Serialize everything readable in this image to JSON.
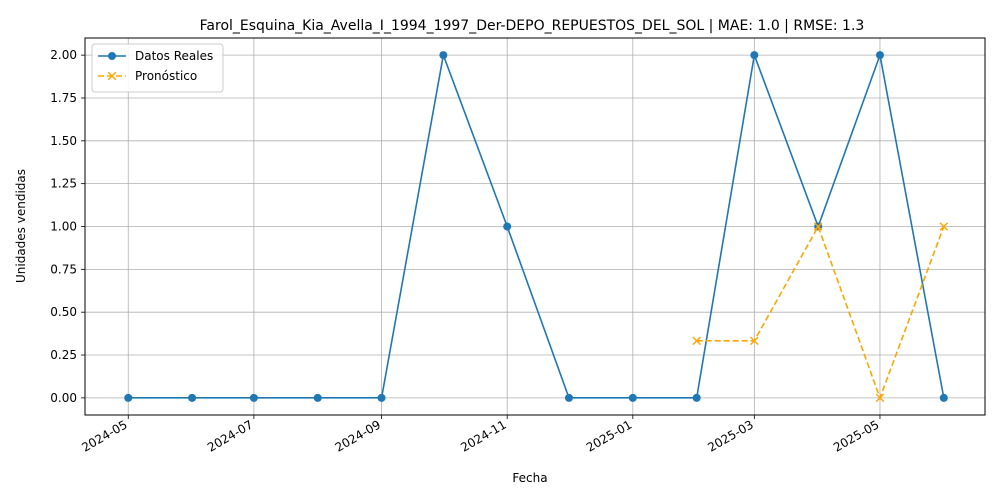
{
  "chart_data": {
    "type": "line",
    "title": "Farol_Esquina_Kia_Avella_I_1994_1997_Der-DEPO_REPUESTOS_DEL_SOL | MAE: 1.0 | RMSE: 1.3",
    "xlabel": "Fecha",
    "ylabel": "Unidades vendidas",
    "ylim": [
      -0.1,
      2.1
    ],
    "xlim": [
      "2024-04-10",
      "2025-06-21"
    ],
    "x_ticks": [
      "2024-05",
      "2024-07",
      "2024-09",
      "2024-11",
      "2025-01",
      "2025-03",
      "2025-05"
    ],
    "y_ticks": [
      "0.00",
      "0.25",
      "0.50",
      "0.75",
      "1.00",
      "1.25",
      "1.50",
      "1.75",
      "2.00"
    ],
    "grid": true,
    "legend_position": "top-left",
    "series": [
      {
        "name": "Datos Reales",
        "color": "#1f77b4",
        "style": "solid",
        "marker": "circle",
        "x": [
          "2024-05-01",
          "2024-06-01",
          "2024-07-01",
          "2024-08-01",
          "2024-09-01",
          "2024-10-01",
          "2024-11-01",
          "2024-12-01",
          "2025-01-01",
          "2025-02-01",
          "2025-03-01",
          "2025-04-01",
          "2025-05-01",
          "2025-06-01"
        ],
        "values": [
          0,
          0,
          0,
          0,
          0,
          2,
          1,
          0,
          0,
          0,
          2,
          1,
          2,
          0
        ]
      },
      {
        "name": "Pronóstico",
        "color": "#ffa500",
        "style": "dashed",
        "marker": "x",
        "x": [
          "2025-02-01",
          "2025-03-01",
          "2025-04-01",
          "2025-05-01",
          "2025-06-01"
        ],
        "values": [
          0.333,
          0.333,
          1.0,
          0.0,
          1.0
        ]
      }
    ]
  }
}
